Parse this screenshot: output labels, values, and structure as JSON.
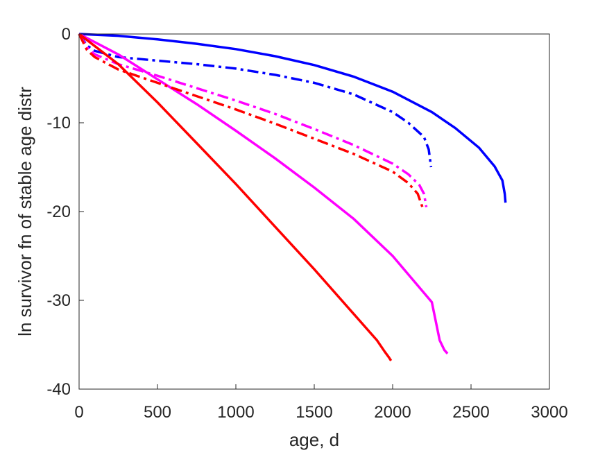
{
  "chart_data": {
    "type": "line",
    "title": "",
    "xlabel": "age, d",
    "ylabel": "ln survivor fn of stable age distr",
    "xlim": [
      0,
      3000
    ],
    "ylim": [
      -40,
      0
    ],
    "xticks": [
      0,
      500,
      1000,
      1500,
      2000,
      2500,
      3000
    ],
    "yticks": [
      0,
      -10,
      -20,
      -30,
      -40
    ],
    "xtick_labels": [
      "0",
      "500",
      "1000",
      "1500",
      "2000",
      "2500",
      "3000"
    ],
    "ytick_labels": [
      "0",
      "-10",
      "-20",
      "-30",
      "-40"
    ],
    "grid": false,
    "legend": "none",
    "series": [
      {
        "color": "#0000ff",
        "style": "solid",
        "x": [
          0,
          250,
          500,
          750,
          1000,
          1250,
          1500,
          1750,
          2000,
          2250,
          2400,
          2550,
          2650,
          2700,
          2715,
          2720
        ],
        "y": [
          0,
          -0.2,
          -0.6,
          -1.1,
          -1.7,
          -2.5,
          -3.5,
          -4.8,
          -6.5,
          -8.8,
          -10.6,
          -12.8,
          -14.9,
          -16.5,
          -18.0,
          -19.0
        ]
      },
      {
        "color": "#0000ff",
        "style": "dashdot",
        "x": [
          0,
          50,
          100,
          250,
          500,
          750,
          1000,
          1250,
          1500,
          1750,
          2000,
          2100,
          2200,
          2230,
          2245
        ],
        "y": [
          0,
          -1.3,
          -1.9,
          -2.6,
          -3.0,
          -3.4,
          -3.9,
          -4.6,
          -5.5,
          -6.8,
          -8.8,
          -10.0,
          -11.6,
          -13.0,
          -15.0
        ]
      },
      {
        "color": "#ff00ff",
        "style": "solid",
        "x": [
          0,
          250,
          500,
          750,
          1000,
          1250,
          1500,
          1750,
          2000,
          2250,
          2300,
          2330,
          2350
        ],
        "y": [
          0,
          -2.3,
          -5.1,
          -7.9,
          -10.9,
          -14.0,
          -17.3,
          -20.8,
          -25.0,
          -30.2,
          -34.5,
          -35.6,
          -36.0
        ]
      },
      {
        "color": "#ff00ff",
        "style": "dashdot",
        "x": [
          0,
          50,
          100,
          250,
          500,
          750,
          1000,
          1250,
          1500,
          1750,
          2000,
          2100,
          2170,
          2200,
          2215
        ],
        "y": [
          0,
          -1.5,
          -2.3,
          -3.4,
          -4.7,
          -6.1,
          -7.5,
          -9.0,
          -10.7,
          -12.5,
          -14.6,
          -15.8,
          -17.0,
          -18.0,
          -19.5
        ]
      },
      {
        "color": "#ff0000",
        "style": "solid",
        "x": [
          0,
          250,
          500,
          750,
          1000,
          1250,
          1500,
          1750,
          1900,
          1950,
          1975,
          1990
        ],
        "y": [
          0,
          -3.4,
          -7.7,
          -12.3,
          -16.9,
          -21.7,
          -26.5,
          -31.5,
          -34.5,
          -35.8,
          -36.4,
          -36.8
        ]
      },
      {
        "color": "#ff0000",
        "style": "dashdot",
        "x": [
          0,
          50,
          100,
          250,
          500,
          750,
          1000,
          1250,
          1500,
          1750,
          2000,
          2100,
          2160,
          2190
        ],
        "y": [
          0,
          -1.8,
          -2.6,
          -4.0,
          -5.5,
          -7.0,
          -8.5,
          -10.1,
          -11.8,
          -13.5,
          -15.5,
          -16.8,
          -18.0,
          -19.5
        ]
      }
    ]
  }
}
